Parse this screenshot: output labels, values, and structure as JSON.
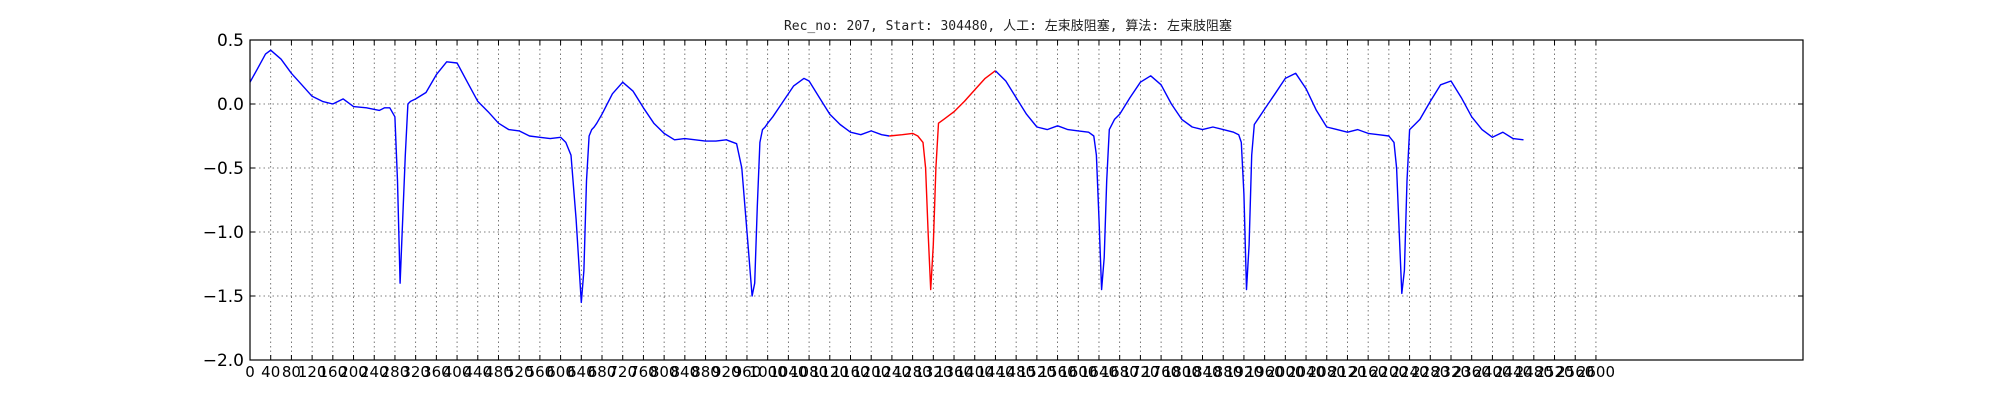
{
  "chart_data": {
    "type": "line",
    "title": "Rec_no: 207, Start: 304480, 人工: 左束肢阻塞, 算法: 左束肢阻塞",
    "xlabel": "",
    "ylabel": "",
    "xlim": [
      0,
      3000
    ],
    "ylim": [
      -2.0,
      0.5
    ],
    "grid": true,
    "grid_style": "dotted",
    "yticks": [
      0.5,
      0.0,
      -0.5,
      -1.0,
      -1.5,
      -2.0
    ],
    "ytick_labels": [
      "0.5",
      "0.0",
      "−0.5",
      "−1.0",
      "−1.5",
      "−2.0"
    ],
    "xticks": [
      0,
      40,
      80,
      120,
      160,
      200,
      240,
      280,
      320,
      360,
      400,
      440,
      480,
      520,
      560,
      600,
      640,
      680,
      720,
      760,
      800,
      840,
      880,
      920,
      960,
      1000,
      1040,
      1080,
      1120,
      1160,
      1200,
      1240,
      1280,
      1320,
      1360,
      1400,
      1440,
      1480,
      1520,
      1560,
      1600,
      1640,
      1680,
      1720,
      1760,
      1800,
      1840,
      1880,
      1920,
      1960,
      2000,
      2040,
      2080,
      2120,
      2160,
      2200,
      2240,
      2280,
      2320,
      2360,
      2400,
      2440,
      2480,
      2520,
      2560,
      2600
    ],
    "xtick_labels": [
      "0",
      "40",
      "80",
      "120",
      "160",
      "200",
      "240",
      "280",
      "320",
      "360",
      "400",
      "440",
      "480",
      "520",
      "560",
      "600",
      "640",
      "680",
      "720",
      "760",
      "800",
      "840",
      "880",
      "920",
      "960",
      "1000",
      "1040",
      "1080",
      "1120",
      "1160",
      "1200",
      "1240",
      "1280",
      "1320",
      "1360",
      "1400",
      "1440",
      "1480",
      "1520",
      "1560",
      "1600",
      "1640",
      "1680",
      "1720",
      "1760",
      "1800",
      "1840",
      "1880",
      "1920",
      "1960",
      "2000",
      "2040",
      "2080",
      "2120",
      "2160",
      "2200",
      "2240",
      "2280",
      "2320",
      "2360",
      "2400",
      "2440",
      "2480",
      "2520",
      "2560",
      "2600"
    ],
    "series": [
      {
        "color": "#0000ff",
        "x": [
          0,
          15,
          30,
          40,
          60,
          80,
          100,
          120,
          140,
          160,
          180,
          200,
          225,
          250,
          260,
          270,
          280,
          285,
          290,
          295,
          300,
          305,
          310,
          320,
          340,
          360,
          380,
          400,
          420,
          440,
          460,
          480,
          500,
          520,
          540,
          560,
          580,
          600,
          610,
          620,
          630,
          640,
          645,
          650,
          655,
          660,
          665,
          670,
          680,
          700,
          720,
          740,
          760,
          780,
          800,
          820,
          840,
          860,
          880,
          900,
          920,
          940,
          950,
          960,
          970,
          975,
          980,
          985,
          990,
          995,
          1000,
          1010,
          1030,
          1050,
          1070,
          1080,
          1100,
          1120,
          1140,
          1160,
          1180,
          1200,
          1220,
          1235
        ],
        "y": [
          0.17,
          0.28,
          0.39,
          0.42,
          0.35,
          0.24,
          0.15,
          0.06,
          0.02,
          0.0,
          0.04,
          -0.02,
          -0.03,
          -0.05,
          -0.03,
          -0.03,
          -0.1,
          -0.6,
          -1.4,
          -0.9,
          -0.4,
          0.0,
          0.02,
          0.04,
          0.09,
          0.23,
          0.33,
          0.32,
          0.17,
          0.02,
          -0.06,
          -0.15,
          -0.2,
          -0.21,
          -0.25,
          -0.26,
          -0.27,
          -0.26,
          -0.3,
          -0.4,
          -0.9,
          -1.55,
          -1.3,
          -0.6,
          -0.25,
          -0.2,
          -0.18,
          -0.15,
          -0.08,
          0.08,
          0.17,
          0.1,
          -0.03,
          -0.15,
          -0.23,
          -0.28,
          -0.27,
          -0.28,
          -0.29,
          -0.29,
          -0.28,
          -0.31,
          -0.5,
          -1.0,
          -1.5,
          -1.4,
          -0.8,
          -0.3,
          -0.2,
          -0.18,
          -0.15,
          -0.1,
          0.02,
          0.14,
          0.2,
          0.18,
          0.05,
          -0.08,
          -0.16,
          -0.22,
          -0.24,
          -0.21,
          -0.24,
          -0.25
        ]
      },
      {
        "color": "#ff0000",
        "x": [
          1235,
          1260,
          1280,
          1290,
          1300,
          1305,
          1310,
          1315,
          1320,
          1325,
          1330,
          1340,
          1360,
          1380,
          1400,
          1420,
          1440
        ],
        "y": [
          -0.25,
          -0.24,
          -0.23,
          -0.25,
          -0.3,
          -0.5,
          -1.0,
          -1.45,
          -1.1,
          -0.5,
          -0.15,
          -0.12,
          -0.06,
          0.02,
          0.11,
          0.2,
          0.26
        ]
      },
      {
        "color": "#0000ff",
        "x": [
          1440,
          1460,
          1480,
          1500,
          1520,
          1540,
          1560,
          1580,
          1600,
          1620,
          1630,
          1635,
          1640,
          1645,
          1650,
          1655,
          1660,
          1670,
          1680,
          1700,
          1720,
          1740,
          1760,
          1780,
          1800,
          1820,
          1840,
          1860,
          1880,
          1900,
          1910,
          1915,
          1920,
          1925,
          1930,
          1935,
          1940,
          1950,
          1960,
          1980,
          2000,
          2020,
          2040,
          2060,
          2080,
          2100,
          2120,
          2140,
          2160,
          2180,
          2200,
          2210,
          2215,
          2220,
          2225,
          2230,
          2235,
          2240,
          2250,
          2260,
          2280,
          2300,
          2320,
          2340,
          2360,
          2380,
          2400,
          2420,
          2440,
          2460
        ],
        "y": [
          0.26,
          0.18,
          0.05,
          -0.08,
          -0.18,
          -0.2,
          -0.17,
          -0.2,
          -0.21,
          -0.22,
          -0.25,
          -0.4,
          -0.9,
          -1.45,
          -1.2,
          -0.6,
          -0.2,
          -0.12,
          -0.08,
          0.05,
          0.17,
          0.22,
          0.15,
          0.0,
          -0.12,
          -0.18,
          -0.2,
          -0.18,
          -0.2,
          -0.22,
          -0.24,
          -0.3,
          -0.7,
          -1.45,
          -1.1,
          -0.4,
          -0.16,
          -0.1,
          -0.04,
          0.08,
          0.2,
          0.24,
          0.12,
          -0.05,
          -0.18,
          -0.2,
          -0.22,
          -0.2,
          -0.23,
          -0.24,
          -0.25,
          -0.3,
          -0.5,
          -1.0,
          -1.48,
          -1.3,
          -0.6,
          -0.2,
          -0.16,
          -0.12,
          0.02,
          0.15,
          0.18,
          0.05,
          -0.1,
          -0.2,
          -0.26,
          -0.22,
          -0.27,
          -0.28
        ]
      }
    ]
  }
}
